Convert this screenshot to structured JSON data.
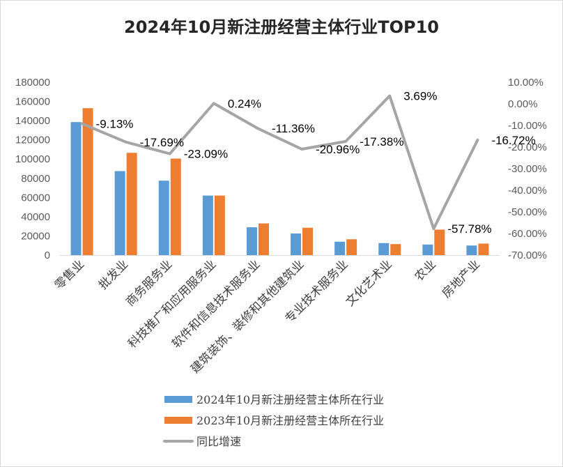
{
  "chart_data": {
    "type": "bar",
    "title": "2024年10月新注册经营主体行业TOP10",
    "categories": [
      "零售业",
      "批发业",
      "商务服务业",
      "科技推广和应用服务业",
      "软件和信息技术服务业",
      "建筑装饰、装修和其他建筑业",
      "专业技术服务业",
      "文化艺术业",
      "农业",
      "房地产业"
    ],
    "series": [
      {
        "name": "2024年10月新注册经营主体所在行业",
        "type": "bar",
        "axis": "left",
        "color": "#5b9bd5",
        "values": [
          138500,
          87500,
          77500,
          62000,
          29000,
          22500,
          14000,
          12500,
          11000,
          10000
        ]
      },
      {
        "name": "2023年10月新注册经营主体所在行业",
        "type": "bar",
        "axis": "left",
        "color": "#ed7d31",
        "values": [
          153000,
          106500,
          100500,
          62000,
          33000,
          28500,
          16500,
          11500,
          26500,
          12000
        ]
      },
      {
        "name": "同比增速",
        "type": "line",
        "axis": "right",
        "color": "#a5a5a5",
        "values": [
          -9.13,
          -17.69,
          -23.09,
          0.24,
          -11.36,
          -20.96,
          -17.38,
          3.69,
          -57.78,
          -16.72
        ],
        "labels": [
          "-9.13%",
          "-17.69%",
          "-23.09%",
          "0.24%",
          "-11.36%",
          "-20.96%",
          "-17.38%",
          "3.69%",
          "-57.78%",
          "-16.72%"
        ]
      }
    ],
    "y_left": {
      "min": 0,
      "max": 180000,
      "step": 20000,
      "ticks": [
        "0",
        "20000",
        "40000",
        "60000",
        "80000",
        "100000",
        "120000",
        "140000",
        "160000",
        "180000"
      ]
    },
    "y_right": {
      "min": -70,
      "max": 10,
      "step": 10,
      "ticks": [
        "-70.00%",
        "-60.00%",
        "-50.00%",
        "-40.00%",
        "-30.00%",
        "-20.00%",
        "-10.00%",
        "0.00%",
        "10.00%"
      ]
    },
    "grid": false,
    "legend": "bottom"
  }
}
